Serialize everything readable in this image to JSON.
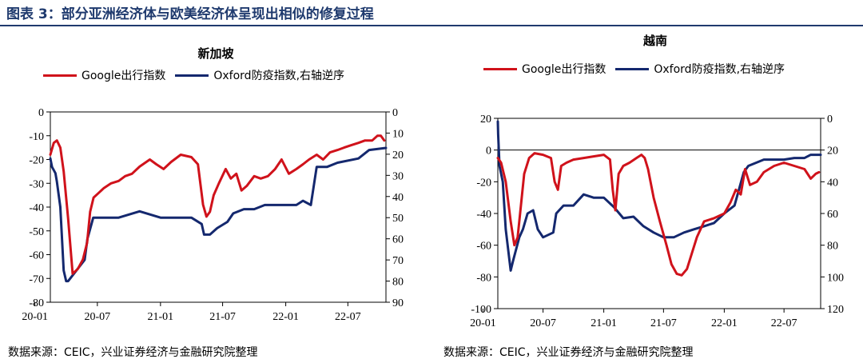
{
  "header": {
    "title": "图表 3：部分亚洲经济体与欧美经济体呈现出相似的修复过程"
  },
  "source_left": "数据来源：CEIC，兴业证券经济与金融研究院整理",
  "source_right": "数据来源：CEIC，兴业证券经济与金融研究院整理",
  "colors": {
    "google": "#d0121b",
    "oxford": "#14286e",
    "header": "#1f3a6e"
  },
  "chart_data": [
    {
      "type": "line",
      "title": "新加坡",
      "legend": [
        "Google出行指数",
        "Oxford防疫指数,右轴逆序"
      ],
      "x_ticks": [
        "20-01",
        "20-07",
        "21-01",
        "21-07",
        "22-01",
        "22-07"
      ],
      "x_range": [
        "2020-02-15",
        "2022-10-20"
      ],
      "y_left": {
        "range": [
          -80,
          0
        ],
        "ticks": [
          0,
          -10,
          -20,
          -30,
          -40,
          -50,
          -60,
          -70,
          -80
        ]
      },
      "y_right": {
        "range": [
          0,
          90
        ],
        "inverted": true,
        "ticks": [
          0,
          10,
          20,
          30,
          40,
          50,
          60,
          70,
          80,
          90
        ]
      },
      "series": [
        {
          "name": "Google出行指数",
          "axis": "left",
          "color": "#d0121b",
          "x": [
            "2020-02-15",
            "2020-02-25",
            "2020-03-05",
            "2020-03-15",
            "2020-03-25",
            "2020-04-07",
            "2020-04-20",
            "2020-05-05",
            "2020-05-20",
            "2020-06-01",
            "2020-06-10",
            "2020-06-20",
            "2020-07-05",
            "2020-07-20",
            "2020-08-10",
            "2020-09-01",
            "2020-09-20",
            "2020-10-10",
            "2020-11-01",
            "2020-12-01",
            "2020-12-20",
            "2021-01-10",
            "2021-02-01",
            "2021-03-01",
            "2021-04-01",
            "2021-04-20",
            "2021-05-05",
            "2021-05-15",
            "2021-05-25",
            "2021-06-05",
            "2021-06-20",
            "2021-07-10",
            "2021-07-25",
            "2021-08-10",
            "2021-08-25",
            "2021-09-10",
            "2021-10-01",
            "2021-10-20",
            "2021-11-10",
            "2021-12-01",
            "2021-12-20",
            "2022-01-10",
            "2022-02-01",
            "2022-02-20",
            "2022-03-10",
            "2022-04-01",
            "2022-04-20",
            "2022-05-10",
            "2022-06-01",
            "2022-06-20",
            "2022-07-10",
            "2022-08-01",
            "2022-08-20",
            "2022-09-10",
            "2022-09-25",
            "2022-10-05",
            "2022-10-15"
          ],
          "values": [
            -18,
            -13,
            -12,
            -15,
            -25,
            -45,
            -68,
            -66,
            -62,
            -55,
            -42,
            -36,
            -34,
            -32,
            -30,
            -29,
            -27,
            -26,
            -23,
            -20,
            -22,
            -24,
            -21,
            -18,
            -19,
            -22,
            -39,
            -44,
            -42,
            -35,
            -30,
            -24,
            -28,
            -26,
            -33,
            -31,
            -27,
            -28,
            -27,
            -24,
            -20,
            -26,
            -24,
            -22,
            -20,
            -18,
            -20,
            -17,
            -16,
            -15,
            -14,
            -13,
            -12,
            -12,
            -10,
            -10,
            -12
          ]
        },
        {
          "name": "Oxford防疫指数,右轴逆序",
          "axis": "right",
          "color": "#14286e",
          "x": [
            "2020-02-15",
            "2020-02-20",
            "2020-03-01",
            "2020-03-05",
            "2020-03-15",
            "2020-03-25",
            "2020-04-01",
            "2020-04-07",
            "2020-05-01",
            "2020-05-15",
            "2020-05-25",
            "2020-06-02",
            "2020-06-19",
            "2020-09-01",
            "2020-11-01",
            "2021-01-01",
            "2021-03-01",
            "2021-04-01",
            "2021-05-01",
            "2021-05-08",
            "2021-05-25",
            "2021-06-15",
            "2021-07-15",
            "2021-08-01",
            "2021-09-01",
            "2021-10-01",
            "2021-11-01",
            "2021-12-01",
            "2022-01-01",
            "2022-02-01",
            "2022-02-20",
            "2022-03-15",
            "2022-04-01",
            "2022-05-01",
            "2022-06-01",
            "2022-08-01",
            "2022-09-01",
            "2022-10-20"
          ],
          "values": [
            22,
            26,
            29,
            33,
            45,
            75,
            80,
            80,
            75,
            72,
            70,
            60,
            50,
            50,
            47,
            50,
            50,
            50,
            53,
            58,
            58,
            55,
            52,
            48,
            46,
            46,
            44,
            44,
            44,
            44,
            42,
            44,
            26,
            26,
            24,
            22,
            18,
            17
          ]
        }
      ]
    },
    {
      "type": "line",
      "title": "越南",
      "legend": [
        "Google出行指数",
        "Oxford防疫指数,右轴逆序"
      ],
      "x_ticks": [
        "20-01",
        "20-07",
        "21-01",
        "21-07",
        "22-01",
        "22-07"
      ],
      "x_range": [
        "2020-02-15",
        "2022-10-20"
      ],
      "y_left": {
        "range": [
          -100,
          20
        ],
        "ticks": [
          20,
          0,
          -20,
          -40,
          -60,
          -80,
          -100
        ]
      },
      "y_right": {
        "range": [
          0,
          120
        ],
        "inverted": true,
        "ticks": [
          0,
          20,
          40,
          60,
          80,
          100,
          120
        ]
      },
      "series": [
        {
          "name": "Google出行指数",
          "axis": "left",
          "color": "#d0121b",
          "x": [
            "2020-02-15",
            "2020-02-25",
            "2020-03-10",
            "2020-03-25",
            "2020-04-05",
            "2020-04-15",
            "2020-04-25",
            "2020-05-05",
            "2020-05-20",
            "2020-06-05",
            "2020-07-01",
            "2020-07-25",
            "2020-08-05",
            "2020-08-15",
            "2020-08-25",
            "2020-09-10",
            "2020-10-01",
            "2020-11-01",
            "2020-12-01",
            "2021-01-01",
            "2021-01-20",
            "2021-01-28",
            "2021-02-05",
            "2021-02-15",
            "2021-03-01",
            "2021-03-20",
            "2021-04-10",
            "2021-04-25",
            "2021-05-05",
            "2021-05-15",
            "2021-06-01",
            "2021-06-20",
            "2021-07-10",
            "2021-07-25",
            "2021-08-10",
            "2021-08-25",
            "2021-09-10",
            "2021-09-25",
            "2021-10-10",
            "2021-11-01",
            "2021-12-01",
            "2022-01-01",
            "2022-01-20",
            "2022-02-05",
            "2022-02-20",
            "2022-03-05",
            "2022-03-20",
            "2022-04-10",
            "2022-05-01",
            "2022-06-01",
            "2022-07-01",
            "2022-08-01",
            "2022-09-01",
            "2022-09-20",
            "2022-10-05",
            "2022-10-15"
          ],
          "values": [
            -5,
            -8,
            -20,
            -45,
            -60,
            -55,
            -35,
            -15,
            -5,
            -2,
            -3,
            -5,
            -20,
            -25,
            -10,
            -8,
            -6,
            -5,
            -4,
            -3,
            -6,
            -25,
            -38,
            -15,
            -10,
            -8,
            -5,
            -3,
            -5,
            -12,
            -30,
            -45,
            -60,
            -72,
            -78,
            -79,
            -75,
            -65,
            -55,
            -45,
            -43,
            -40,
            -33,
            -25,
            -28,
            -12,
            -22,
            -20,
            -14,
            -10,
            -8,
            -10,
            -12,
            -18,
            -15,
            -14
          ]
        },
        {
          "name": "Oxford防疫指数,右轴逆序",
          "axis": "right",
          "color": "#14286e",
          "x": [
            "2020-02-15",
            "2020-02-16",
            "2020-02-20",
            "2020-03-01",
            "2020-03-10",
            "2020-03-25",
            "2020-04-01",
            "2020-04-20",
            "2020-05-01",
            "2020-05-15",
            "2020-06-01",
            "2020-06-15",
            "2020-07-01",
            "2020-08-01",
            "2020-08-10",
            "2020-09-01",
            "2020-10-01",
            "2020-11-01",
            "2020-12-01",
            "2021-01-01",
            "2021-02-01",
            "2021-03-01",
            "2021-04-01",
            "2021-05-01",
            "2021-06-01",
            "2021-07-01",
            "2021-08-01",
            "2021-09-01",
            "2021-10-01",
            "2021-11-01",
            "2021-12-01",
            "2022-01-01",
            "2022-02-01",
            "2022-03-01",
            "2022-03-15",
            "2022-05-01",
            "2022-07-01",
            "2022-08-01",
            "2022-09-01",
            "2022-09-20",
            "2022-10-20"
          ],
          "values": [
            2,
            10,
            30,
            40,
            70,
            96,
            90,
            75,
            70,
            60,
            58,
            70,
            75,
            72,
            60,
            55,
            55,
            48,
            50,
            50,
            56,
            63,
            62,
            68,
            72,
            75,
            75,
            72,
            70,
            68,
            66,
            60,
            55,
            34,
            30,
            26,
            26,
            25,
            25,
            23,
            23
          ]
        }
      ]
    }
  ]
}
